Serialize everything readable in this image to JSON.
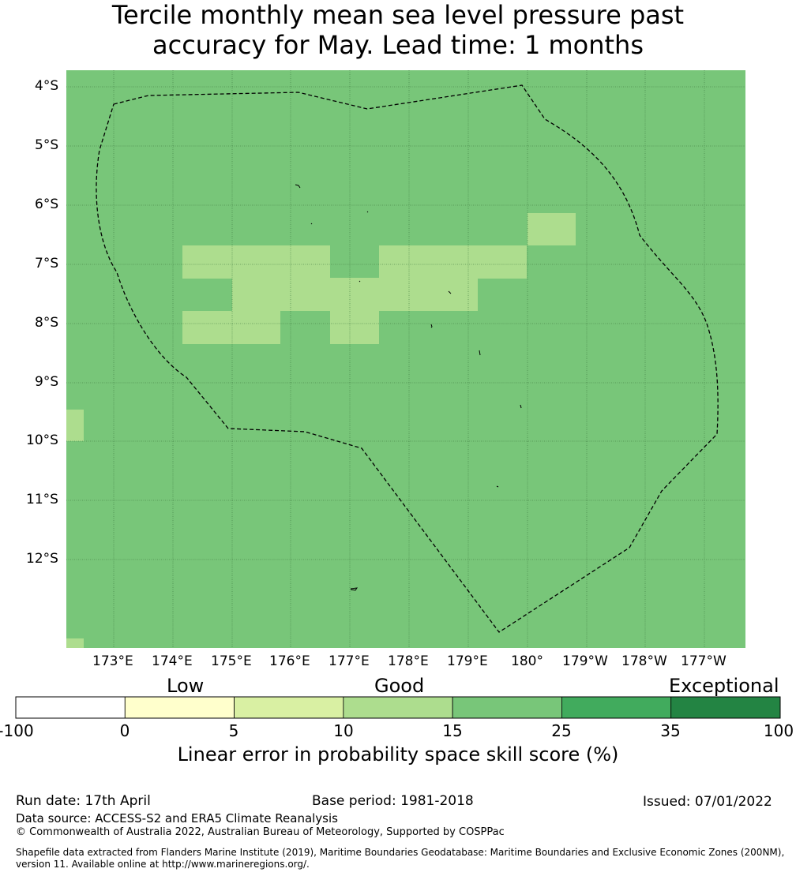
{
  "title": {
    "line1": "Tercile monthly mean sea level pressure past",
    "line2": "accuracy for May. Lead time: 1 months"
  },
  "map": {
    "lat_labels": [
      "4°S",
      "5°S",
      "6°S",
      "7°S",
      "8°S",
      "9°S",
      "10°S",
      "11°S",
      "12°S"
    ],
    "lon_labels": [
      "173°E",
      "174°E",
      "175°E",
      "176°E",
      "177°E",
      "178°E",
      "179°E",
      "180°",
      "179°W",
      "178°W",
      "177°W"
    ],
    "background_category": "15-25",
    "background_color": "#78c679",
    "patch_color": "#addd8e",
    "boundary_style": "dashed"
  },
  "colorbar": {
    "category_labels": [
      "Low",
      "Good",
      "Exceptional"
    ],
    "ticks": [
      "-100",
      "0",
      "5",
      "10",
      "15",
      "25",
      "35",
      "100"
    ],
    "colors": [
      "#ffffff",
      "#ffffcc",
      "#d9f0a3",
      "#addd8e",
      "#78c679",
      "#41ab5d",
      "#238443"
    ],
    "title": "Linear error in probability space skill score (%)"
  },
  "footer": {
    "run_date": "Run date: 17th April",
    "base_period": "Base period: 1981-2018",
    "issued": "Issued: 07/01/2022",
    "data_source": "Data source: ACCESS-S2 and ERA5 Climate Reanalysis",
    "copyright": "© Commonwealth of Australia 2022, Australian Bureau of Meteorology, Supported by COSPPac",
    "shapefile_line1": "Shapefile data extracted from Flanders Marine Institute (2019), Maritime Boundaries Geodatabase: Maritime Boundaries and Exclusive Economic Zones (200NM),",
    "shapefile_line2": "version 11. Available online at http://www.marineregions.org/."
  }
}
